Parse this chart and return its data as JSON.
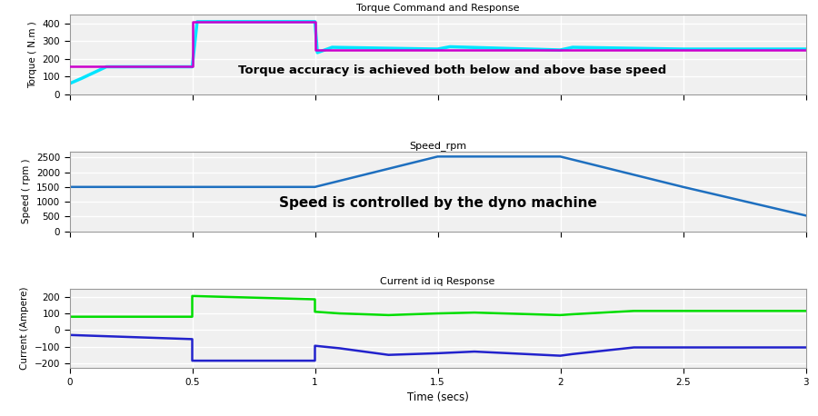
{
  "title1": "Torque Command and Response",
  "title2": "Speed_rpm",
  "title3": "Current id iq Response",
  "xlabel": "Time (secs)",
  "ylabel1": "Torque ( N.m )",
  "ylabel2": "Speed ( rpm )",
  "ylabel3": "Current (Ampere)",
  "annotation1": "Torque accuracy is achieved both below and above base speed",
  "annotation2": "Speed is controlled by the dyno machine",
  "torque_cmd_color": "#CC00CC",
  "torque_resp_color": "#00E5FF",
  "speed_color": "#1E6FBF",
  "iq_color": "#00DD00",
  "id_color": "#2222CC",
  "bg_color": "#F0F0F0",
  "fig_bg": "#FFFFFF",
  "xlim": [
    0,
    3
  ],
  "ylim1": [
    0,
    450
  ],
  "ylim2": [
    0,
    2700
  ],
  "ylim3": [
    -230,
    250
  ],
  "yticks1": [
    0,
    100,
    200,
    300,
    400
  ],
  "yticks2": [
    0,
    500,
    1000,
    1500,
    2000,
    2500
  ],
  "yticks3": [
    -200,
    -100,
    0,
    100,
    200
  ],
  "xticks": [
    0,
    0.5,
    1.0,
    1.5,
    2.0,
    2.5,
    3.0
  ],
  "torque_cmd_t": [
    0,
    0.001,
    0.001,
    0.5,
    0.5,
    1.0,
    1.0,
    3.0
  ],
  "torque_cmd_v": [
    160,
    160,
    160,
    160,
    410,
    410,
    250,
    250
  ],
  "torque_resp_t": [
    0,
    0.05,
    0.15,
    0.5,
    0.5,
    0.52,
    1.0,
    1.01,
    1.07,
    1.5,
    1.55,
    2.0,
    2.05,
    2.5,
    3.0
  ],
  "torque_resp_v": [
    60,
    90,
    155,
    155,
    155,
    410,
    410,
    235,
    265,
    255,
    268,
    250,
    265,
    255,
    255
  ],
  "speed_t": [
    0,
    1.0,
    1.5,
    2.0,
    2.5,
    3.0
  ],
  "speed_v": [
    1500,
    1500,
    2530,
    2530,
    1500,
    530
  ],
  "iq_t": [
    0,
    0.5,
    0.5,
    1.0,
    1.0,
    1.1,
    1.3,
    1.5,
    1.65,
    2.0,
    2.05,
    2.3,
    2.5,
    3.0
  ],
  "iq_v": [
    80,
    80,
    205,
    185,
    110,
    100,
    90,
    100,
    105,
    90,
    95,
    115,
    115,
    115
  ],
  "id_t": [
    0,
    0.5,
    0.5,
    1.0,
    1.0,
    1.1,
    1.3,
    1.5,
    1.65,
    2.0,
    2.05,
    2.3,
    2.5,
    3.0
  ],
  "id_v": [
    -30,
    -55,
    -185,
    -185,
    -95,
    -110,
    -150,
    -140,
    -130,
    -155,
    -145,
    -105,
    -105,
    -105
  ]
}
